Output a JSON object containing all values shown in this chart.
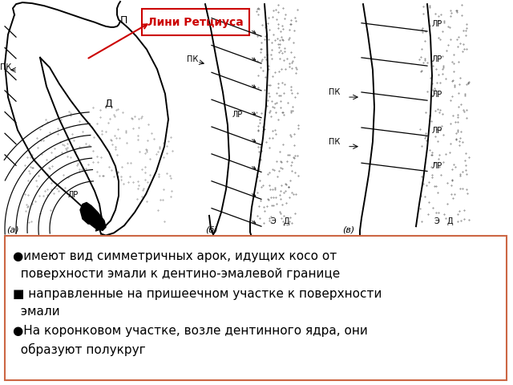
{
  "background_color": "#ffffff",
  "callout_text": "Лини Ретциуса",
  "callout_color": "#cc0000",
  "callout_bg": "#ffffff",
  "text_line1": "●имеют вид симметричных арок, идущих косо от",
  "text_line1b": "  поверхности эмали к дентино-эмалевой границе",
  "text_line2": "■ направленные на пришеечном участке к поверхности",
  "text_line2b": "  эмали",
  "text_line3": "●На коронковом участке, возле дентинного ядра, они",
  "text_line3b": "  образуют полукруг",
  "text_fontsize": 11,
  "box_edge_color": "#cc6644"
}
